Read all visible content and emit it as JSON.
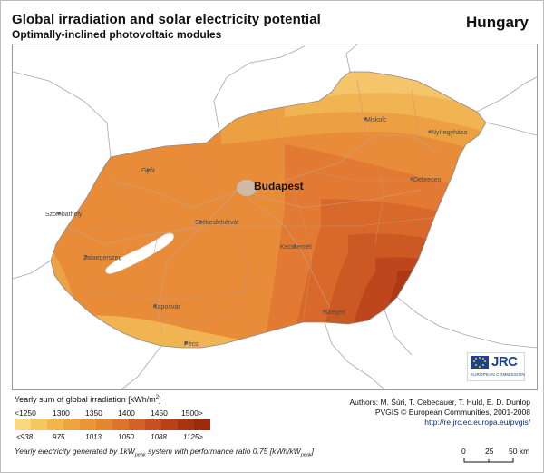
{
  "header": {
    "title": "Global irradiation and solar electricity potential",
    "subtitle": "Optimally-inclined photovoltaic modules",
    "country": "Hungary"
  },
  "map": {
    "capital": "Budapest",
    "cities": [
      "Miskolc",
      "Nyíregyháza",
      "Győr",
      "Debrecen",
      "Szombathely",
      "Székesfehérvár",
      "Kecskemét",
      "Zalaegerszeg",
      "Kaposvár",
      "Szeged",
      "Pécs"
    ],
    "colors": {
      "c1": "#f4c86e",
      "c2": "#f1b653",
      "c3": "#eea044",
      "c4": "#e98d3b",
      "c5": "#e47b34",
      "c6": "#da6a2c",
      "c7": "#ca5522",
      "c8": "#b0401a",
      "lake": "#ffffff",
      "border": "#8b8b8b",
      "road": "#b7b7b7"
    }
  },
  "legend": {
    "title": "Yearly sum of global irradiation [kWh/m",
    "title_sup": "2",
    "title_end": "]",
    "top_labels": [
      "<1250",
      "1300",
      "1350",
      "1400",
      "1450",
      "1500>"
    ],
    "bottom_labels": [
      "<938",
      "975",
      "1013",
      "1050",
      "1088",
      "1125>"
    ],
    "colors": [
      "#fad67f",
      "#f6c660",
      "#f2b549",
      "#eea53f",
      "#ea9537",
      "#e48532",
      "#dd732c",
      "#d26227",
      "#c65021",
      "#b84119",
      "#a83312",
      "#9a2a0e"
    ],
    "note_a": "Yearly electricity generated by 1kW",
    "note_sub": "peak",
    "note_b": " system with performance ratio 0.75 [kWh/kW",
    "note_sub2": "peak",
    "note_c": "]"
  },
  "credits": {
    "authors": "Authors: M. Šúri, T. Cebecauer, T. Huld, E. D. Dunlop",
    "copyright": "PVGIS © European Communities, 2001-2008",
    "url": "http://re.jrc.ec.europa.eu/pvgis/"
  },
  "scale": {
    "labels": [
      "0",
      "25",
      "50 km"
    ]
  },
  "logo": {
    "name": "JRC",
    "sub": "EUROPEAN COMMISSION"
  }
}
